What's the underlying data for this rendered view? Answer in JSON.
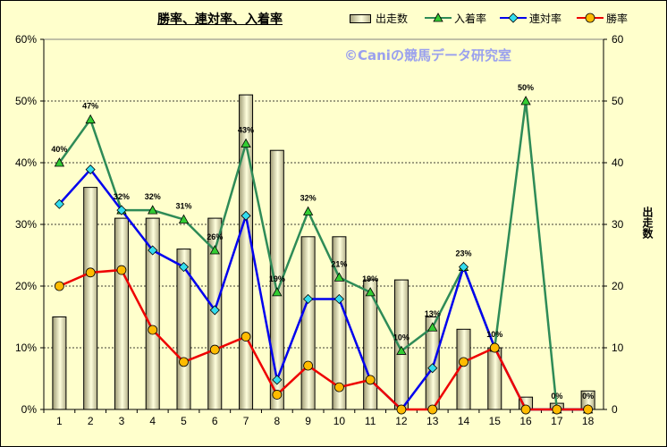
{
  "chart_data": {
    "type": "bar",
    "title": "勝率、連対率、入着率",
    "annotation": "©Caniの競馬データ研究室",
    "categories": [
      "1",
      "2",
      "3",
      "4",
      "5",
      "6",
      "7",
      "8",
      "9",
      "10",
      "11",
      "12",
      "13",
      "14",
      "15",
      "16",
      "17",
      "18"
    ],
    "left_axis": {
      "ylim": [
        0,
        60
      ],
      "ticks": [
        "0%",
        "10%",
        "20%",
        "30%",
        "40%",
        "50%",
        "60%"
      ]
    },
    "right_axis": {
      "ylabel": "出走数",
      "ylim": [
        0,
        60
      ],
      "ticks": [
        "0",
        "10",
        "20",
        "30",
        "40",
        "50",
        "60"
      ]
    },
    "series": [
      {
        "name": "出走数",
        "kind": "bar",
        "axis": "right",
        "color": "#ffffcc",
        "values": [
          15,
          36,
          31,
          31,
          26,
          31,
          51,
          42,
          28,
          28,
          21,
          21,
          15,
          13,
          10,
          2,
          1,
          3
        ]
      },
      {
        "name": "入着率",
        "kind": "line",
        "axis": "left",
        "color": "#2e8b57",
        "marker": "triangle",
        "marker_color": "#33cc33",
        "values": [
          40,
          47,
          32.3,
          32.3,
          30.8,
          25.8,
          43.1,
          19,
          32.1,
          21.4,
          19,
          9.5,
          13.3,
          23.1,
          10,
          50,
          0,
          0
        ],
        "data_labels": [
          "40%",
          "47%",
          "32%",
          "32%",
          "31%",
          "26%",
          "43%",
          "19%",
          "32%",
          "21%",
          "19%",
          "10%",
          "13%",
          "23%",
          "10%",
          "50%",
          "0%",
          "0%"
        ]
      },
      {
        "name": "連対率",
        "kind": "line",
        "axis": "left",
        "color": "#0000ee",
        "marker": "diamond",
        "marker_color": "#33ddee",
        "values": [
          33.3,
          38.9,
          32.3,
          25.8,
          23.1,
          16.1,
          31.4,
          4.8,
          17.9,
          17.9,
          4.8,
          0,
          6.7,
          23.1,
          10,
          0,
          0,
          0
        ]
      },
      {
        "name": "勝率",
        "kind": "line",
        "axis": "left",
        "color": "#ee0000",
        "marker": "circle",
        "marker_color": "#ffbb00",
        "values": [
          20,
          22.2,
          22.6,
          12.9,
          7.7,
          9.7,
          11.8,
          2.4,
          7.1,
          3.6,
          4.8,
          0,
          0,
          7.7,
          10,
          0,
          0,
          0
        ]
      }
    ],
    "legend_position": "top",
    "grid": "horizontal"
  }
}
